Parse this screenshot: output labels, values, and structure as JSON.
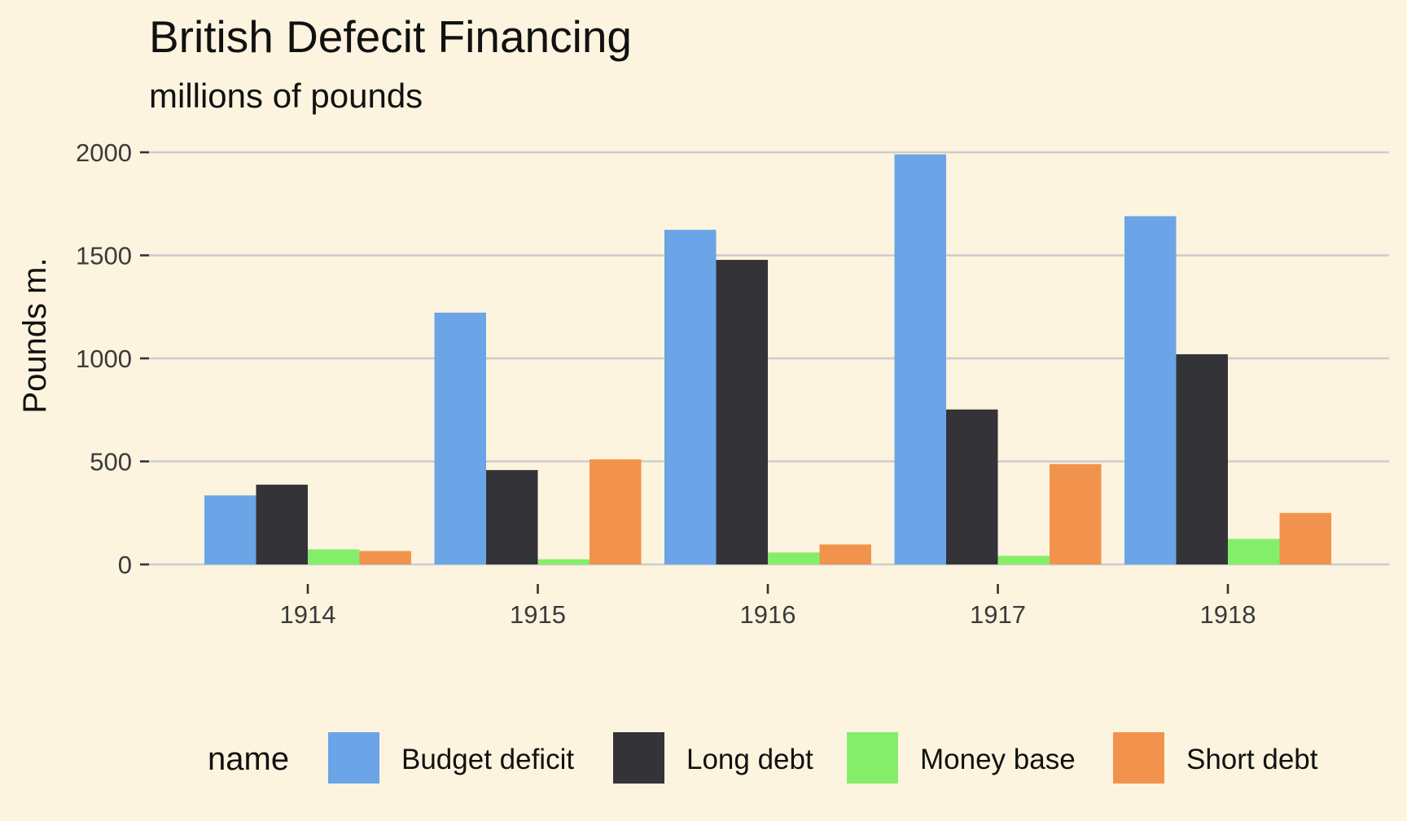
{
  "chart_data": {
    "type": "bar",
    "title": "British Defecit Financing",
    "subtitle": "millions of pounds",
    "xlabel": "",
    "ylabel": "Pounds m.",
    "categories": [
      "1914",
      "1915",
      "1916",
      "1917",
      "1918"
    ],
    "ylim": [
      0,
      2000
    ],
    "yticks": [
      0,
      500,
      1000,
      1500,
      2000
    ],
    "grid": true,
    "legend_title": "name",
    "legend_position": "bottom",
    "series": [
      {
        "name": "Budget deficit",
        "color": "#6ba5e7",
        "values": [
          335,
          1222,
          1624,
          1990,
          1690
        ]
      },
      {
        "name": "Long debt",
        "color": "#333338",
        "values": [
          387,
          458,
          1478,
          752,
          1020
        ]
      },
      {
        "name": "Money base",
        "color": "#84ee6b",
        "values": [
          73,
          25,
          58,
          42,
          124
        ]
      },
      {
        "name": "Short debt",
        "color": "#f2934d",
        "values": [
          65,
          510,
          97,
          487,
          250
        ]
      }
    ]
  }
}
